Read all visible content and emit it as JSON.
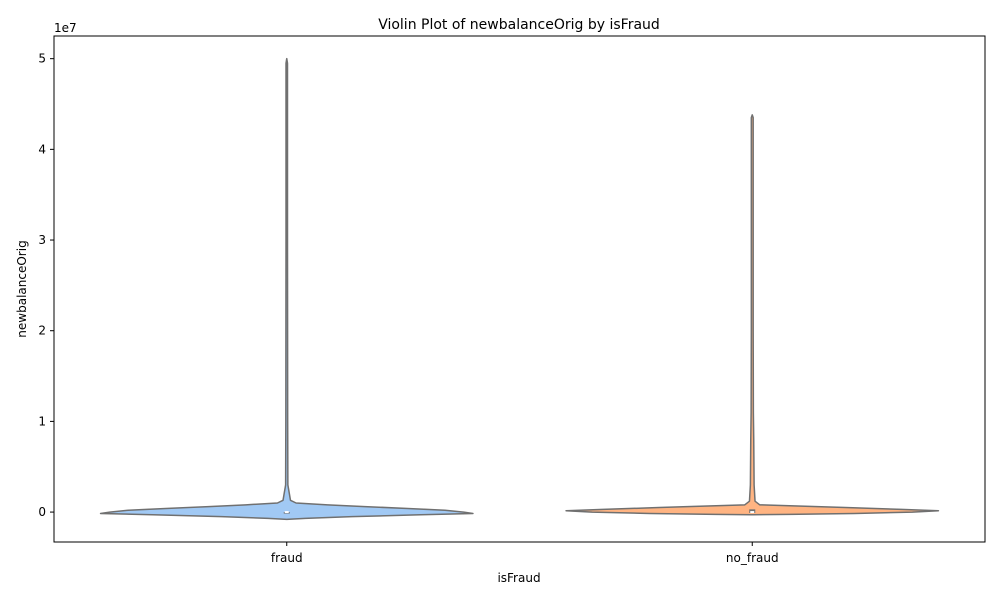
{
  "chart_data": {
    "type": "violin",
    "title": "Violin Plot of newbalanceOrig by isFraud",
    "xlabel": "isFraud",
    "ylabel": "newbalanceOrig",
    "y_offset_label": "1e7",
    "categories": [
      "fraud",
      "no_fraud"
    ],
    "ylim": [
      -3300000,
      52500000
    ],
    "y_ticks": [
      0,
      10000000,
      20000000,
      30000000,
      40000000,
      50000000
    ],
    "y_tick_labels": [
      "0",
      "1",
      "2",
      "3",
      "4",
      "5"
    ],
    "grid": false,
    "colors": {
      "fraud": "#a1c9f4",
      "no_fraud": "#ffb482",
      "outline": "#707070"
    },
    "violins": [
      {
        "category": "fraud",
        "color": "#a1c9f4",
        "profile": [
          [
            -800000,
            0.0
          ],
          [
            -700000,
            0.1
          ],
          [
            -500000,
            0.35
          ],
          [
            -300000,
            0.72
          ],
          [
            -150000,
            1.0
          ],
          [
            0,
            0.95
          ],
          [
            200000,
            0.85
          ],
          [
            400000,
            0.65
          ],
          [
            600000,
            0.42
          ],
          [
            800000,
            0.22
          ],
          [
            1000000,
            0.05
          ],
          [
            1300000,
            0.02
          ],
          [
            3000000,
            0.006
          ],
          [
            10000000,
            0.005
          ],
          [
            30000000,
            0.004
          ],
          [
            49500000,
            0.004
          ],
          [
            50000000,
            0.0
          ]
        ],
        "median": 0,
        "q1": 0,
        "q3": 0
      },
      {
        "category": "no_fraud",
        "color": "#ffb482",
        "profile": [
          [
            -300000,
            0.0
          ],
          [
            -250000,
            0.2
          ],
          [
            -150000,
            0.55
          ],
          [
            0,
            0.86
          ],
          [
            150000,
            1.0
          ],
          [
            300000,
            0.8
          ],
          [
            500000,
            0.5
          ],
          [
            600000,
            0.35
          ],
          [
            800000,
            0.04
          ],
          [
            1200000,
            0.015
          ],
          [
            3000000,
            0.01
          ],
          [
            8000000,
            0.008
          ],
          [
            11000000,
            0.006
          ],
          [
            20000000,
            0.005
          ],
          [
            43500000,
            0.005
          ],
          [
            43800000,
            0.0
          ]
        ],
        "median": 0,
        "q1": -100000,
        "q3": 300000
      }
    ]
  }
}
